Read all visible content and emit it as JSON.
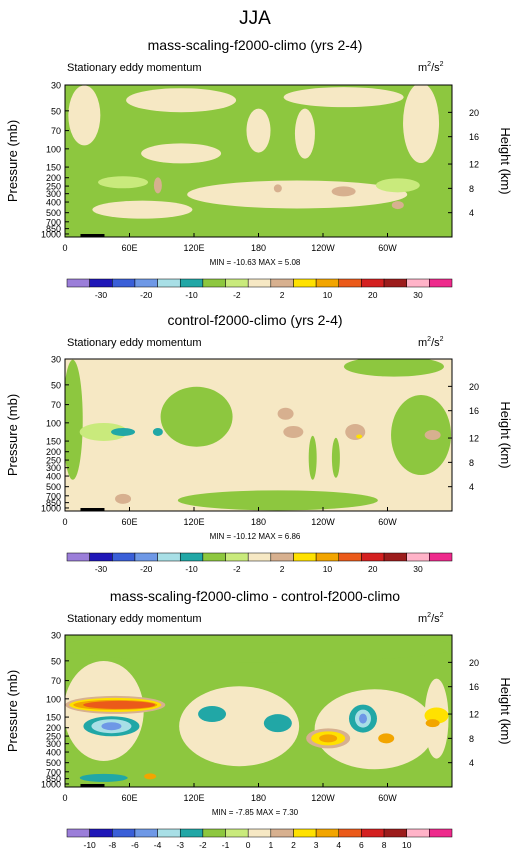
{
  "figure": {
    "title": "JJA"
  },
  "palette": {
    "cb_colors_13": [
      "#9b7ed9",
      "#1f17b8",
      "#3a5fd8",
      "#6e98e6",
      "#a8dfe6",
      "#21a7a6",
      "#8dc73f",
      "#c9ea7c",
      "#f6e8c4",
      "#d7b08f",
      "#ffe100",
      "#f2a500",
      "#eb5a1a",
      "#d42020",
      "#9c1c1c",
      "#ffb3c8",
      "#ee2a8c"
    ]
  },
  "chart_data": [
    {
      "type": "heatmap",
      "title": "mass-scaling-f2000-climo (yrs 2-4)",
      "subtitle_left": "Stationary eddy momentum",
      "units": "m²/s²",
      "units_base": "m",
      "units_sup1": "2",
      "units_mid": "/s",
      "units_sup2": "2",
      "ylabel": "Pressure (mb)",
      "ylabel_right": "Height (km)",
      "pressure_ticks": [
        "30",
        "50",
        "70",
        "100",
        "150",
        "200",
        "250",
        "300",
        "400",
        "500",
        "700",
        "850",
        "1000"
      ],
      "height_ticks": [
        "20",
        "16",
        "12",
        "8",
        "4"
      ],
      "lon_ticks": [
        "0",
        "60E",
        "120E",
        "180",
        "120W",
        "60W"
      ],
      "minmax": "MIN = -10.63   MAX =    5.08",
      "colorbar_labels": [
        "-30",
        "-20",
        "-10",
        "-2",
        "2",
        "10",
        "20",
        "30"
      ],
      "colorbar_colors": [
        "#9b7ed9",
        "#1f17b8",
        "#3a5fd8",
        "#6e98e6",
        "#a8dfe6",
        "#21a7a6",
        "#8dc73f",
        "#c9ea7c",
        "#f6e8c4",
        "#d7b08f",
        "#ffe100",
        "#f2a500",
        "#eb5a1a",
        "#d42020",
        "#9c1c1c",
        "#ffb3c8",
        "#ee2a8c"
      ],
      "field_colors": {
        "bg": "#8dc73f",
        "light": "#f6e8c4",
        "pale": "#c9ea7c",
        "tan": "#d7b08f",
        "teal": "#21a7a6"
      }
    },
    {
      "type": "heatmap",
      "title": "control-f2000-climo (yrs 2-4)",
      "subtitle_left": "Stationary eddy momentum",
      "units": "m²/s²",
      "units_base": "m",
      "units_sup1": "2",
      "units_mid": "/s",
      "units_sup2": "2",
      "ylabel": "Pressure (mb)",
      "ylabel_right": "Height (km)",
      "pressure_ticks": [
        "30",
        "50",
        "70",
        "100",
        "150",
        "200",
        "250",
        "300",
        "400",
        "500",
        "700",
        "850",
        "1000"
      ],
      "height_ticks": [
        "20",
        "16",
        "12",
        "8",
        "4"
      ],
      "lon_ticks": [
        "0",
        "60E",
        "120E",
        "180",
        "120W",
        "60W"
      ],
      "minmax": "MIN = -10.12   MAX =    6.86",
      "colorbar_labels": [
        "-30",
        "-20",
        "-10",
        "-2",
        "2",
        "10",
        "20",
        "30"
      ],
      "colorbar_colors": [
        "#9b7ed9",
        "#1f17b8",
        "#3a5fd8",
        "#6e98e6",
        "#a8dfe6",
        "#21a7a6",
        "#8dc73f",
        "#c9ea7c",
        "#f6e8c4",
        "#d7b08f",
        "#ffe100",
        "#f2a500",
        "#eb5a1a",
        "#d42020",
        "#9c1c1c",
        "#ffb3c8",
        "#ee2a8c"
      ],
      "field_colors": {
        "bg": "#f6e8c4",
        "green": "#8dc73f",
        "pale": "#c9ea7c",
        "tan": "#d7b08f",
        "teal": "#21a7a6",
        "yellow": "#ffe100"
      }
    },
    {
      "type": "heatmap",
      "title": "mass-scaling-f2000-climo - control-f2000-climo",
      "subtitle_left": "Stationary eddy momentum",
      "units": "m²/s²",
      "units_base": "m",
      "units_sup1": "2",
      "units_mid": "/s",
      "units_sup2": "2",
      "ylabel": "Pressure (mb)",
      "ylabel_right": "Height (km)",
      "pressure_ticks": [
        "30",
        "50",
        "70",
        "100",
        "150",
        "200",
        "250",
        "300",
        "400",
        "500",
        "700",
        "850",
        "1000"
      ],
      "height_ticks": [
        "20",
        "16",
        "12",
        "8",
        "4"
      ],
      "lon_ticks": [
        "0",
        "60E",
        "120E",
        "180",
        "120W",
        "60W"
      ],
      "minmax": "MIN = -7.85   MAX =   7.30",
      "colorbar_labels": [
        "-10",
        "-8",
        "-6",
        "-4",
        "-3",
        "-2",
        "-1",
        "0",
        "1",
        "2",
        "3",
        "4",
        "6",
        "8",
        "10"
      ],
      "colorbar_colors": [
        "#9b7ed9",
        "#1f17b8",
        "#3a5fd8",
        "#6e98e6",
        "#a8dfe6",
        "#21a7a6",
        "#8dc73f",
        "#c9ea7c",
        "#f6e8c4",
        "#d7b08f",
        "#ffe100",
        "#f2a500",
        "#eb5a1a",
        "#d42020",
        "#9c1c1c",
        "#ffb3c8",
        "#ee2a8c"
      ],
      "field_colors": {
        "bg": "#8dc73f",
        "light": "#f6e8c4",
        "pale": "#c9ea7c",
        "tan": "#d7b08f",
        "teal": "#21a7a6",
        "cyan": "#a8dfe6",
        "blue": "#6e98e6",
        "yellow": "#ffe100",
        "orange": "#f2a500",
        "red": "#eb5a1a"
      }
    }
  ]
}
